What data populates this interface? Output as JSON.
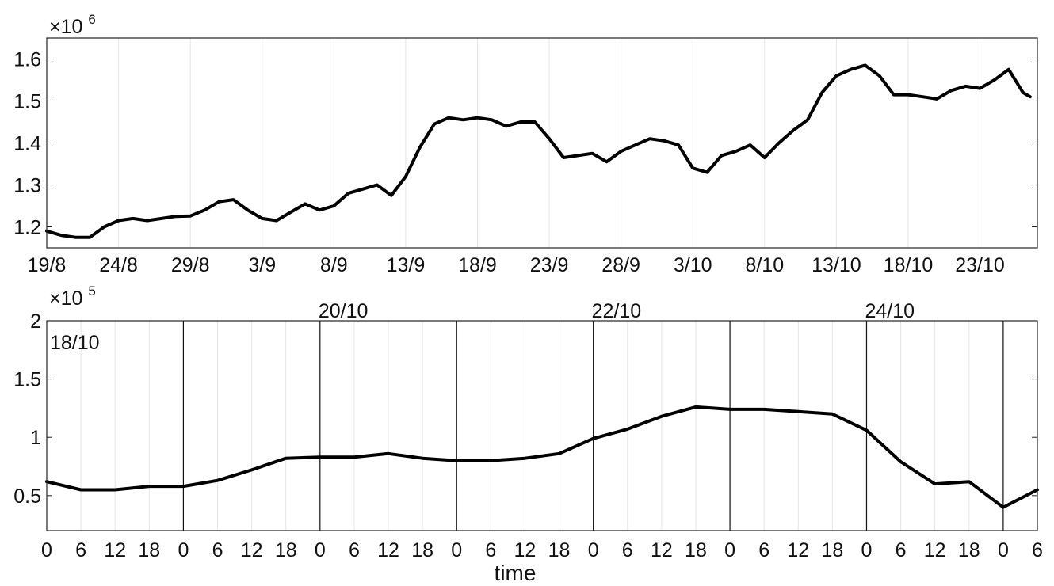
{
  "chart_data": [
    {
      "type": "line",
      "title": "",
      "xlabel": "",
      "ylabel": "",
      "y_exponent_label": "×10",
      "y_exponent_power": "6",
      "x_tick_labels": [
        "19/8",
        "24/8",
        "29/8",
        "3/9",
        "8/9",
        "13/9",
        "18/9",
        "23/9",
        "28/9",
        "3/10",
        "8/10",
        "13/10",
        "18/10",
        "23/10"
      ],
      "xlim": [
        0,
        69
      ],
      "ylim": [
        1.15,
        1.65
      ],
      "y_ticks": [
        1.2,
        1.3,
        1.4,
        1.5,
        1.6
      ],
      "y_tick_labels": [
        "1.2",
        "1.3",
        "1.4",
        "1.5",
        "1.6"
      ],
      "grid": "vertical",
      "x": [
        0,
        1,
        2,
        3,
        4,
        5,
        6,
        7,
        8,
        9,
        10,
        11,
        12,
        13,
        14,
        15,
        16,
        17,
        18,
        19,
        20,
        21,
        22,
        23,
        24,
        25,
        26,
        27,
        28,
        29,
        30,
        31,
        32,
        33,
        34,
        35,
        36,
        37,
        38,
        39,
        40,
        41,
        42,
        43,
        44,
        45,
        46,
        47,
        48,
        49,
        50,
        51,
        52,
        53,
        54,
        55,
        56,
        57,
        58,
        59,
        60,
        61,
        62,
        63,
        64,
        65,
        66,
        67,
        68,
        68.5
      ],
      "values": [
        1.19,
        1.18,
        1.175,
        1.175,
        1.2,
        1.215,
        1.22,
        1.215,
        1.22,
        1.225,
        1.226,
        1.24,
        1.26,
        1.265,
        1.24,
        1.22,
        1.215,
        1.235,
        1.255,
        1.24,
        1.25,
        1.28,
        1.29,
        1.3,
        1.275,
        1.32,
        1.39,
        1.445,
        1.46,
        1.455,
        1.46,
        1.455,
        1.44,
        1.45,
        1.45,
        1.41,
        1.365,
        1.37,
        1.375,
        1.355,
        1.38,
        1.395,
        1.41,
        1.405,
        1.395,
        1.34,
        1.33,
        1.37,
        1.38,
        1.395,
        1.365,
        1.4,
        1.43,
        1.455,
        1.52,
        1.56,
        1.575,
        1.585,
        1.56,
        1.515,
        1.515,
        1.51,
        1.505,
        1.525,
        1.535,
        1.53,
        1.55,
        1.575,
        1.52,
        1.51
      ],
      "line_color": "#000000"
    },
    {
      "type": "line",
      "title": "",
      "xlabel": "time",
      "ylabel": "",
      "y_exponent_label": "×10",
      "y_exponent_power": "5",
      "x_tick_labels": [
        "0",
        "6",
        "12",
        "18",
        "0",
        "6",
        "12",
        "18",
        "0",
        "6",
        "12",
        "18",
        "0",
        "6",
        "12",
        "18",
        "0",
        "6",
        "12",
        "18",
        "0",
        "6",
        "12",
        "18",
        "0",
        "6",
        "12",
        "18",
        "0",
        "6"
      ],
      "day_labels": [
        "18/10",
        "20/10",
        "22/10",
        "24/10"
      ],
      "xlim": [
        0,
        174
      ],
      "ylim": [
        0.2,
        2.0
      ],
      "y_ticks": [
        0.5,
        1.0,
        1.5,
        2.0
      ],
      "y_tick_labels": [
        "0.5",
        "1",
        "1.5",
        "2"
      ],
      "grid": "vertical",
      "x": [
        0,
        6,
        12,
        18,
        24,
        30,
        36,
        42,
        48,
        54,
        60,
        66,
        72,
        78,
        84,
        90,
        96,
        102,
        108,
        114,
        120,
        126,
        132,
        138,
        144,
        150,
        156,
        162,
        168,
        174
      ],
      "values": [
        0.62,
        0.55,
        0.55,
        0.58,
        0.58,
        0.63,
        0.72,
        0.82,
        0.83,
        0.83,
        0.86,
        0.82,
        0.8,
        0.8,
        0.82,
        0.86,
        0.99,
        1.07,
        1.18,
        1.26,
        1.24,
        1.24,
        1.22,
        1.2,
        1.06,
        0.79,
        0.6,
        0.62,
        0.4,
        0.55
      ],
      "line_color": "#000000"
    }
  ]
}
